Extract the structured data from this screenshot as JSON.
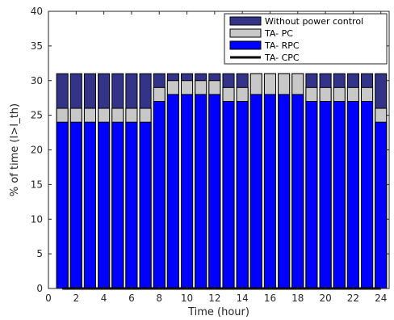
{
  "chart_data": {
    "type": "bar",
    "mode": "overlay",
    "xlabel": "Time (hour)",
    "ylabel": "% of  time (I>I_th)",
    "xlim": [
      0,
      24.6
    ],
    "ylim": [
      0,
      40
    ],
    "xticks": [
      0,
      2,
      4,
      6,
      8,
      10,
      12,
      14,
      16,
      18,
      20,
      22,
      24
    ],
    "yticks": [
      0,
      5,
      10,
      15,
      20,
      25,
      30,
      35,
      40
    ],
    "grid": false,
    "legend_position": "top-right",
    "x": [
      1,
      2,
      3,
      4,
      5,
      6,
      7,
      8,
      9,
      10,
      11,
      12,
      13,
      14,
      15,
      16,
      17,
      18,
      19,
      20,
      21,
      22,
      23,
      24
    ],
    "series": [
      {
        "name": "Without power control",
        "kind": "bar",
        "color": "#333388",
        "values": [
          31,
          31,
          31,
          31,
          31,
          31,
          31,
          31,
          31,
          31,
          31,
          31,
          31,
          31,
          31,
          31,
          31,
          31,
          31,
          31,
          31,
          31,
          31,
          31
        ]
      },
      {
        "name": "TA- PC",
        "kind": "bar",
        "color": "#c8c8c8",
        "values": [
          26,
          26,
          26,
          26,
          26,
          26,
          26,
          29,
          30,
          30,
          30,
          30,
          29,
          29,
          31,
          31,
          31,
          31,
          29,
          29,
          29,
          29,
          29,
          26
        ]
      },
      {
        "name": "TA- RPC",
        "kind": "bar",
        "color": "#0000ff",
        "values": [
          24,
          24,
          24,
          24,
          24,
          24,
          24,
          27,
          28,
          28,
          28,
          28,
          27,
          27,
          28,
          28,
          28,
          28,
          27,
          27,
          27,
          27,
          27,
          24
        ]
      },
      {
        "name": "TA- CPC",
        "kind": "line",
        "color": "#000000",
        "values": [
          0,
          0,
          0,
          0,
          0,
          0,
          0,
          0,
          0,
          0,
          0,
          0,
          0,
          0,
          0,
          0,
          0,
          0,
          0,
          0,
          0,
          0,
          0,
          0
        ]
      }
    ]
  }
}
